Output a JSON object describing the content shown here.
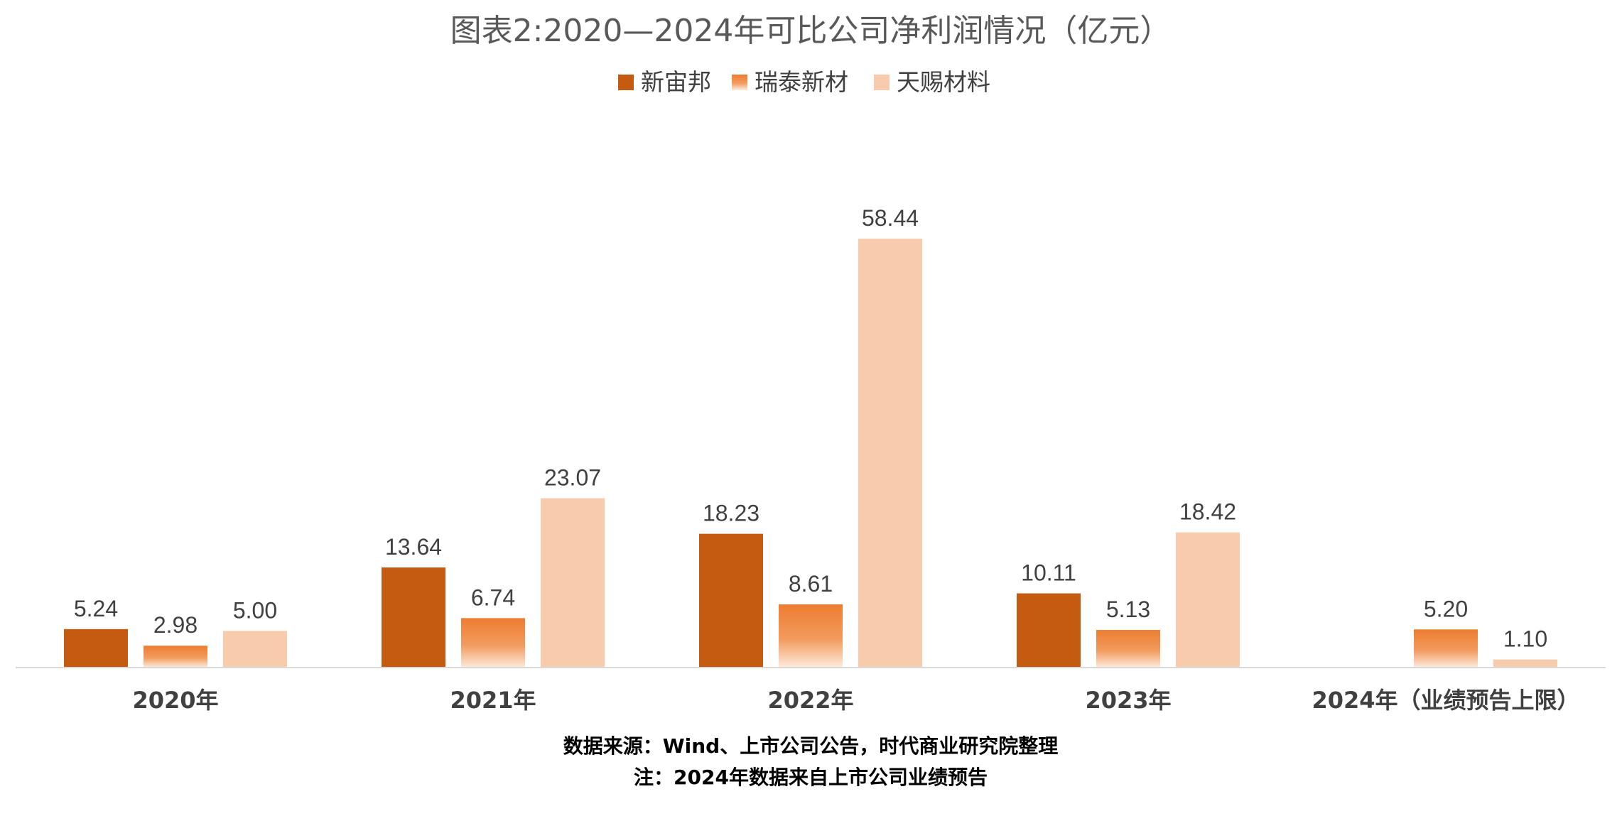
{
  "chart_data": {
    "type": "bar",
    "title": "图表2:2020—2024年可比公司净利润情况（亿元）",
    "categories": [
      "2020年",
      "2021年",
      "2022年",
      "2023年",
      "2024年（业绩预告上限）"
    ],
    "series": [
      {
        "name": "新宙邦",
        "color": "#C55A11",
        "values": [
          5.24,
          13.64,
          18.23,
          10.11,
          null
        ],
        "labels": [
          "5.24",
          "13.64",
          "18.23",
          "10.11",
          ""
        ]
      },
      {
        "name": "瑞泰新材",
        "color": "#ED7D31",
        "values": [
          2.98,
          6.74,
          8.61,
          5.13,
          5.2
        ],
        "labels": [
          "2.98",
          "6.74",
          "8.61",
          "5.13",
          "5.20"
        ]
      },
      {
        "name": "天赐材料",
        "color": "#F8CBAD",
        "values": [
          5.0,
          23.07,
          58.44,
          18.42,
          1.1
        ],
        "labels": [
          "5.00",
          "23.07",
          "58.44",
          "18.42",
          "1.10"
        ]
      }
    ],
    "ylim": [
      0,
      60
    ],
    "xlabel": "",
    "ylabel": "",
    "grid": false,
    "legend_position": "top"
  },
  "notes": {
    "source": "数据来源：Wind、上市公司公告，时代商业研究院整理",
    "remark": "注：2024年数据来自上市公司业绩预告"
  }
}
